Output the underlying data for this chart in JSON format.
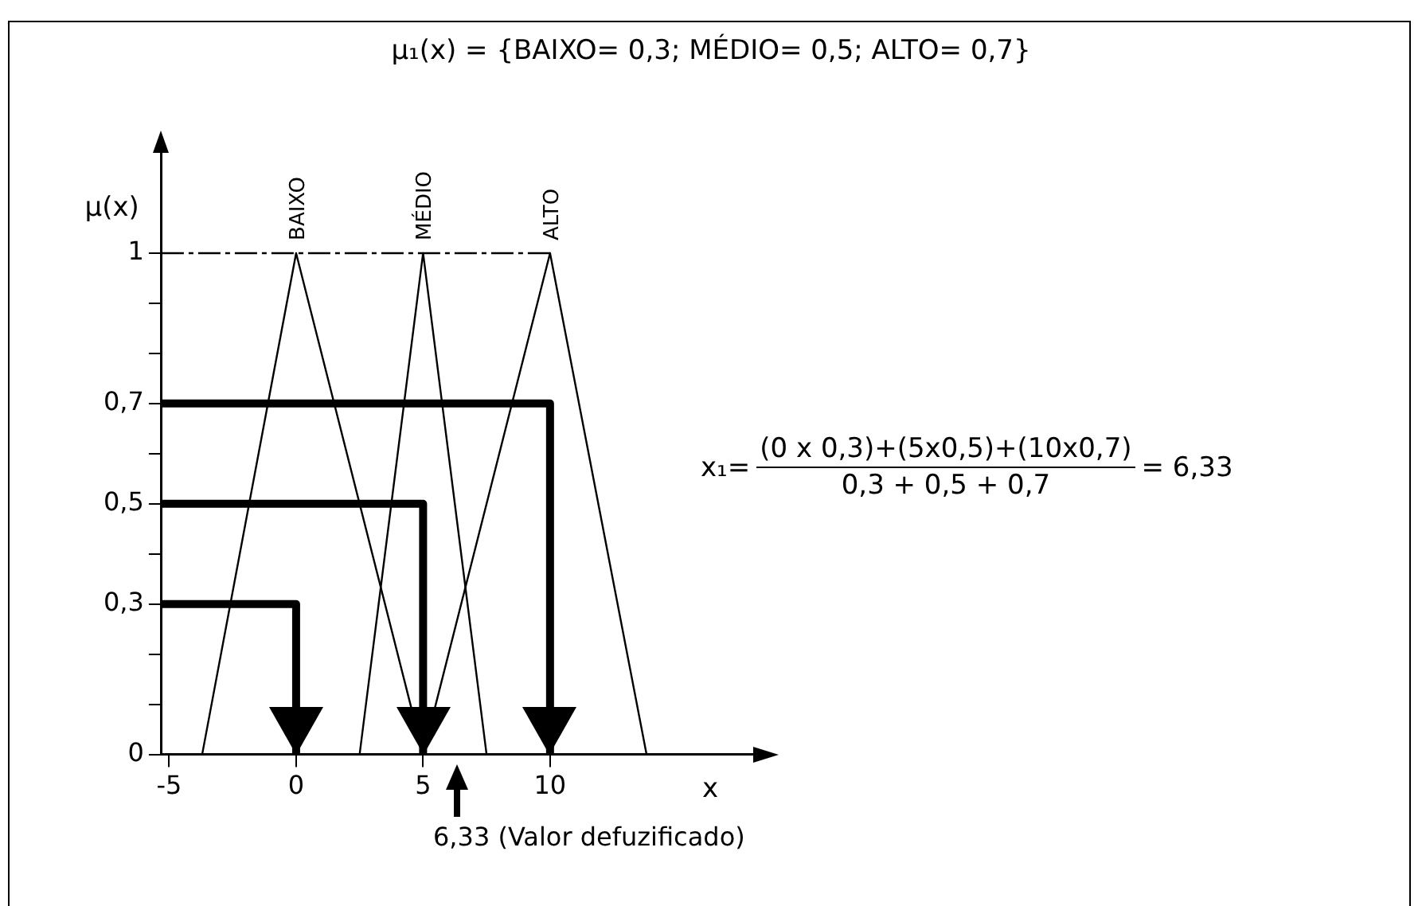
{
  "chart_data": {
    "type": "line",
    "title": "μ₁(x) = {BAIXO= 0,3; MÉDIO= 0,5; ALTO= 0,7}",
    "xlabel": "x",
    "ylabel": "μ(x)",
    "xlim": [
      -5.3,
      18
    ],
    "xticks": [
      -5,
      0,
      5,
      10
    ],
    "ylim": [
      0,
      1.2
    ],
    "yticks": [
      0,
      {
        "value": 0.1,
        "label": null
      },
      {
        "value": 0.2,
        "label": null
      },
      {
        "value": 0.3,
        "label": "0,3"
      },
      {
        "value": 0.4,
        "label": null
      },
      {
        "value": 0.5,
        "label": "0,5"
      },
      {
        "value": 0.6,
        "label": null
      },
      {
        "value": 0.7,
        "label": "0,7"
      },
      {
        "value": 0.8,
        "label": null
      },
      {
        "value": 0.9,
        "label": null
      },
      1
    ],
    "grid": false,
    "legend": false,
    "series": [
      {
        "name": "BAIXO",
        "color": "#000000",
        "x": [
          -3.7,
          0,
          5
        ],
        "values": [
          0,
          1,
          0
        ]
      },
      {
        "name": "MÉDIO",
        "color": "#000000",
        "x": [
          2.5,
          5,
          7.5
        ],
        "values": [
          0,
          1,
          0
        ]
      },
      {
        "name": "ALTO",
        "color": "#000000",
        "x": [
          5,
          10,
          13.8
        ],
        "values": [
          0,
          1,
          0
        ]
      },
      {
        "color": "#000000",
        "x": [
          -5.3,
          10
        ],
        "values": [
          1,
          1
        ],
        "line_style": "dashed"
      },
      {
        "color": "#000000",
        "x": [
          -5.3,
          0,
          0
        ],
        "values": [
          0.3,
          0.3,
          0
        ]
      },
      {
        "color": "#000000",
        "x": [
          -5.3,
          5,
          5
        ],
        "values": [
          0.5,
          0.5,
          0
        ]
      },
      {
        "color": "#000000",
        "x": [
          -5.3,
          10,
          10
        ],
        "values": [
          0.7,
          0.7,
          0
        ]
      }
    ],
    "annotations": [
      "6,33 (Valor defuzificado)",
      "x₁=",
      "(0 x 0,3)+(5x0,5)+(10x0,7)",
      "0,3 + 0,5 + 0,7",
      "= 6,33"
    ]
  }
}
